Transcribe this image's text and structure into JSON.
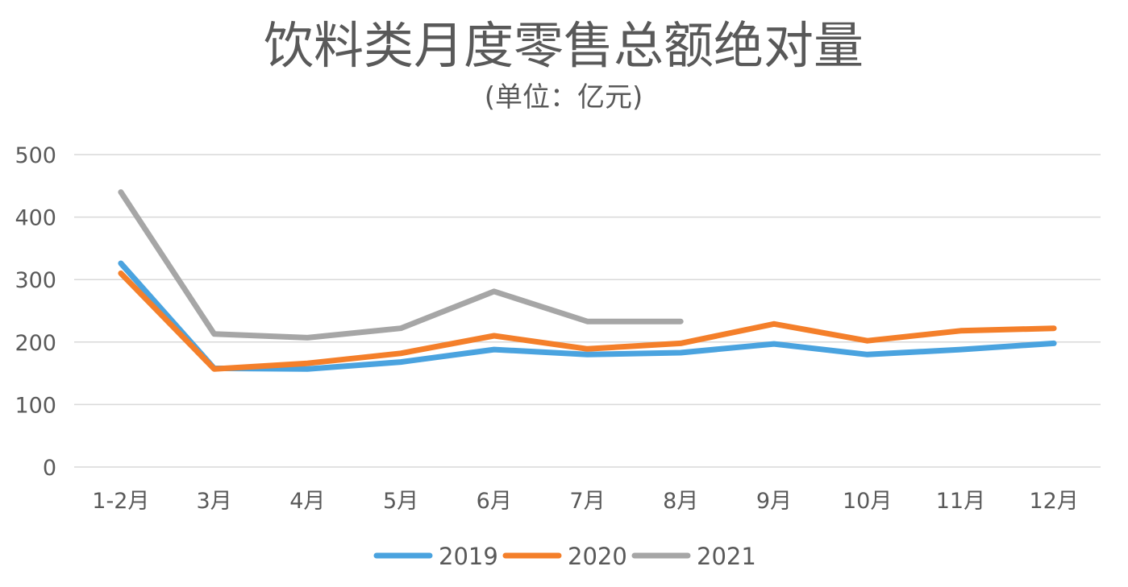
{
  "chart_data": {
    "type": "line",
    "title": "饮料类月度零售总额绝对量",
    "subtitle": "(单位：亿元)",
    "xlabel": "",
    "ylabel": "",
    "categories": [
      "1-2月",
      "3月",
      "4月",
      "5月",
      "6月",
      "7月",
      "8月",
      "9月",
      "10月",
      "11月",
      "12月"
    ],
    "ylim": [
      0,
      500
    ],
    "yticks": [
      "0",
      "100",
      "200",
      "300",
      "400",
      "500"
    ],
    "grid": true,
    "legend_position": "bottom",
    "series": [
      {
        "name": "2019",
        "color": "#4aa3df",
        "values": [
          326,
          158,
          157,
          168,
          188,
          180,
          183,
          197,
          180,
          188,
          198
        ]
      },
      {
        "name": "2020",
        "color": "#f47f2a",
        "values": [
          310,
          157,
          166,
          182,
          210,
          189,
          198,
          229,
          202,
          218,
          222
        ]
      },
      {
        "name": "2021",
        "color": "#a6a6a6",
        "values": [
          440,
          213,
          207,
          222,
          281,
          233,
          233,
          null,
          null,
          null,
          null
        ]
      }
    ]
  }
}
